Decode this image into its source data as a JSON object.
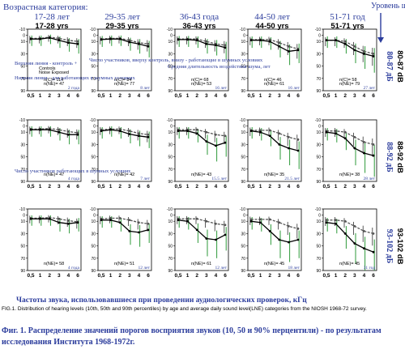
{
  "header": {
    "title_ru": "Возрастная категория:",
    "noise_level_ru": "Уровень шума"
  },
  "age_groups": [
    {
      "ru": "17-28 лет",
      "en": "17-28 yrs"
    },
    {
      "ru": "29-35 лет",
      "en": "29-35 yrs"
    },
    {
      "ru": "36-43 года",
      "en": "36-43 yrs"
    },
    {
      "ru": "44-50 лет",
      "en": "44-50 yrs"
    },
    {
      "ru": "51-71 год",
      "en": "51-71 yrs"
    }
  ],
  "noise_levels": [
    {
      "ru": "80-87 дБ",
      "en": "80-87 dB"
    },
    {
      "ru": "88-92 дБ",
      "en": "88-92 dB"
    },
    {
      "ru": "93-102 дБ",
      "en": "93-102 dB"
    }
  ],
  "annotations": {
    "legend_ru": "Верхняя линия - контроль +",
    "legend_ru2": "Нижняя линия - для работающих в шумных условиях",
    "legend_control": "Controls",
    "legend_exposed": "Noise Exposed",
    "count_note_ru": "Число участников, вверху контроль, внизу - работающие в шумных условиях",
    "duration_note_ru": "Средняя длительность воздействия шума, лет",
    "workers_note_ru": "Число участников работающих в шумных условиях"
  },
  "caption": {
    "xaxis_ru": "Частоты звука, использовавшиеся при проведении аудиологических проверок, кГц",
    "fig_en": "FIG.1. Distribution of hearing levels (10th, 50th and 90th percentiles) by age and average daily sound level(LNE) categories from the NIOSH 1968-72 survey.",
    "fig_ru": "Фиг. 1. Распределение значений порогов восприятия звуков (10, 50 и 90% перцентили) - по результатам исследования Института 1968-1972г."
  },
  "chart_data": {
    "type": "line",
    "layout": "grid 3 rows (noise level) x 5 columns (age group)",
    "x": [
      0.5,
      1,
      2,
      3,
      4,
      6
    ],
    "xticks": [
      "0,5",
      "1",
      "2",
      "3",
      "4",
      "6"
    ],
    "ylim": [
      -10,
      90
    ],
    "yticks": [
      "-10",
      "0",
      "10",
      "30",
      "50",
      "70",
      "90"
    ],
    "y_inverted": true,
    "panels": [
      {
        "row": 0,
        "col": 0,
        "controls": [
          5,
          5,
          3,
          5,
          8,
          10
        ],
        "exposed": [
          6,
          6,
          4,
          8,
          12,
          14
        ],
        "n_control": "114",
        "n_exposed": "47",
        "duration": "2 года"
      },
      {
        "row": 0,
        "col": 1,
        "controls": [
          6,
          5,
          5,
          8,
          12,
          14
        ],
        "exposed": [
          7,
          6,
          6,
          11,
          14,
          18
        ],
        "n_control": "84",
        "n_exposed": "77",
        "duration": "8 лет"
      },
      {
        "row": 0,
        "col": 2,
        "controls": [
          6,
          6,
          6,
          10,
          14,
          16
        ],
        "exposed": [
          7,
          7,
          8,
          14,
          16,
          20
        ],
        "n_control": "68",
        "n_exposed": "53",
        "duration": "16 лет"
      },
      {
        "row": 0,
        "col": 3,
        "controls": [
          7,
          7,
          7,
          12,
          18,
          22
        ],
        "exposed": [
          8,
          8,
          10,
          18,
          26,
          24
        ],
        "n_control": "46",
        "n_exposed": "61",
        "duration": "16 лет"
      },
      {
        "row": 0,
        "col": 4,
        "controls": [
          8,
          8,
          10,
          18,
          26,
          30
        ],
        "exposed": [
          8,
          8,
          14,
          24,
          30,
          34
        ],
        "n_control": "58",
        "n_exposed": "79",
        "duration": "27 лет"
      },
      {
        "row": 1,
        "col": 0,
        "controls": [
          5,
          5,
          4,
          6,
          9,
          11
        ],
        "exposed": [
          6,
          6,
          6,
          10,
          14,
          14
        ],
        "n_control": "",
        "n_exposed": "47",
        "duration": "4 года"
      },
      {
        "row": 1,
        "col": 1,
        "controls": [
          6,
          5,
          5,
          8,
          12,
          14
        ],
        "exposed": [
          8,
          6,
          8,
          13,
          16,
          18
        ],
        "n_control": "",
        "n_exposed": "42",
        "duration": "7 лет"
      },
      {
        "row": 1,
        "col": 2,
        "controls": [
          6,
          6,
          6,
          10,
          14,
          16
        ],
        "exposed": [
          8,
          8,
          12,
          25,
          32,
          27
        ],
        "n_control": "",
        "n_exposed": "43",
        "duration": "15.5 лет"
      },
      {
        "row": 1,
        "col": 3,
        "controls": [
          7,
          7,
          7,
          12,
          18,
          22
        ],
        "exposed": [
          8,
          10,
          16,
          30,
          36,
          40
        ],
        "n_control": "",
        "n_exposed": "35",
        "duration": "21.5 лет"
      },
      {
        "row": 1,
        "col": 4,
        "controls": [
          8,
          8,
          10,
          18,
          26,
          30
        ],
        "exposed": [
          10,
          12,
          20,
          36,
          44,
          48
        ],
        "n_control": "",
        "n_exposed": "38",
        "duration": "28 лет"
      },
      {
        "row": 2,
        "col": 0,
        "controls": [
          5,
          5,
          4,
          6,
          9,
          11
        ],
        "exposed": [
          6,
          6,
          6,
          12,
          14,
          12
        ],
        "n_control": "",
        "n_exposed": "58",
        "duration": "4 года"
      },
      {
        "row": 2,
        "col": 1,
        "controls": [
          6,
          5,
          5,
          8,
          12,
          14
        ],
        "exposed": [
          8,
          8,
          12,
          26,
          28,
          24
        ],
        "n_control": "",
        "n_exposed": "51",
        "duration": "12 лет"
      },
      {
        "row": 2,
        "col": 2,
        "controls": [
          6,
          6,
          6,
          10,
          14,
          16
        ],
        "exposed": [
          8,
          10,
          24,
          38,
          40,
          32
        ],
        "n_control": "",
        "n_exposed": "61",
        "duration": "12 лет"
      },
      {
        "row": 2,
        "col": 3,
        "controls": [
          7,
          7,
          7,
          12,
          18,
          22
        ],
        "exposed": [
          10,
          12,
          26,
          40,
          44,
          40
        ],
        "n_control": "",
        "n_exposed": "45",
        "duration": "18 лет"
      },
      {
        "row": 2,
        "col": 4,
        "controls": [
          8,
          8,
          10,
          18,
          26,
          30
        ],
        "exposed": [
          12,
          14,
          30,
          46,
          54,
          60
        ],
        "n_control": "",
        "n_exposed": "45",
        "duration": "31 год"
      }
    ]
  }
}
